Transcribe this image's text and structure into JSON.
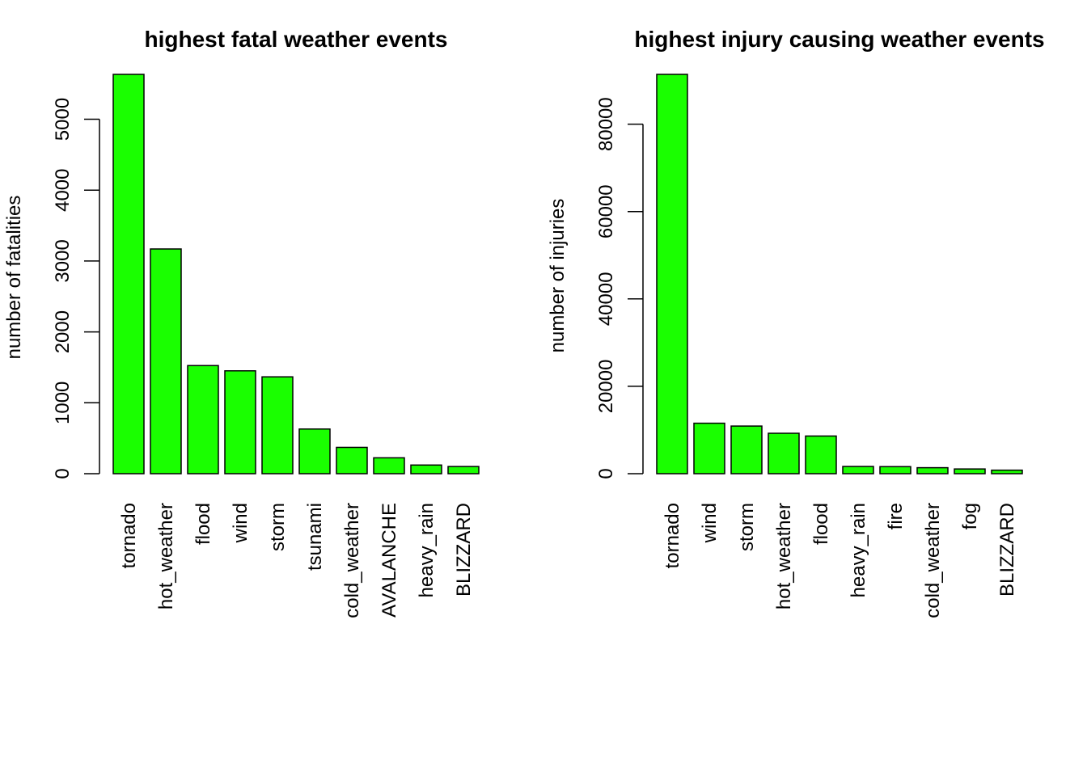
{
  "chart_data": [
    {
      "type": "bar",
      "title": "highest fatal weather events",
      "xlabel": "",
      "ylabel": "number of fatalities",
      "ylim": [
        0,
        5633
      ],
      "yticks": [
        0,
        1000,
        2000,
        3000,
        4000,
        5000
      ],
      "categories": [
        "tornado",
        "hot_weather",
        "flood",
        "wind",
        "storm",
        "tsunami",
        "cold_weather",
        "AVALANCHE",
        "heavy_rain",
        "BLIZZARD"
      ],
      "values": [
        5633,
        3170,
        1525,
        1451,
        1366,
        630,
        371,
        224,
        122,
        101
      ],
      "bar_color": "#1aff00",
      "grid": false,
      "legend": "none"
    },
    {
      "type": "bar",
      "title": "highest injury causing weather events",
      "xlabel": "",
      "ylabel": "number of injuries",
      "ylim": [
        0,
        91400
      ],
      "yticks": [
        0,
        20000,
        40000,
        60000,
        80000
      ],
      "categories": [
        "tornado",
        "wind",
        "storm",
        "hot_weather",
        "flood",
        "heavy_rain",
        "fire",
        "cold_weather",
        "fog",
        "BLIZZARD"
      ],
      "values": [
        91400,
        11550,
        10900,
        9250,
        8620,
        1650,
        1610,
        1370,
        1080,
        805
      ],
      "bar_color": "#1aff00",
      "grid": false,
      "legend": "none"
    }
  ]
}
